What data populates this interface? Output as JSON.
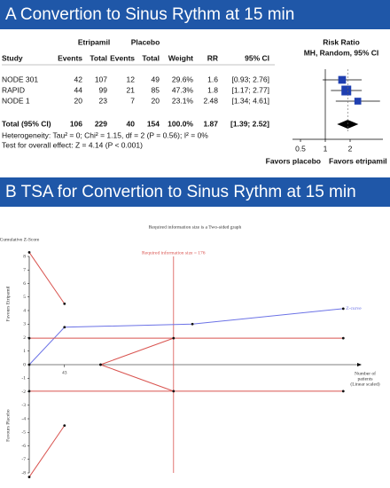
{
  "panel_a": {
    "title": "A Convertion to Sinus Rythm at 15 min",
    "group_headers": [
      "Etripamil",
      "Placebo"
    ],
    "plot_header": [
      "Risk Ratio",
      "MH, Random, 95% CI"
    ],
    "columns": [
      "Study",
      "Events",
      "Total",
      "Events",
      "Total",
      "Weight",
      "RR",
      "95% CI"
    ],
    "rows": [
      {
        "study": "NODE 301",
        "e1": 42,
        "t1": 107,
        "e2": 12,
        "t2": 49,
        "weight": {
          "value": 29.6,
          "label": "29.6%"
        },
        "rr": 1.6,
        "ci": {
          "lower": 0.93,
          "upper": 2.76,
          "label": "[0.93; 2.76]"
        }
      },
      {
        "study": "RAPID",
        "e1": 44,
        "t1": 99,
        "e2": 21,
        "t2": 85,
        "weight": {
          "value": 47.3,
          "label": "47.3%"
        },
        "rr": 1.8,
        "ci": {
          "lower": 1.17,
          "upper": 2.77,
          "label": "[1.17; 2.77]"
        }
      },
      {
        "study": "NODE 1",
        "e1": 20,
        "t1": 23,
        "e2": 7,
        "t2": 20,
        "weight": {
          "value": 23.1,
          "label": "23.1%"
        },
        "rr": 2.48,
        "ci": {
          "lower": 1.34,
          "upper": 4.61,
          "label": "[1.34; 4.61]"
        }
      }
    ],
    "total": {
      "study": "Total (95% CI)",
      "e1": 106,
      "t1": 229,
      "e2": 40,
      "t2": 154,
      "weight": {
        "value": 100.0,
        "label": "100.0%"
      },
      "rr": 1.87,
      "ci": {
        "lower": 1.39,
        "upper": 2.52,
        "label": "[1.39; 2.52]"
      }
    },
    "heterogeneity": "Heterogeneity: Tau² = 0; Chi² = 1.15, df = 2 (P = 0.56); I² = 0%",
    "overall_effect": "Test for overall effect: Z = 4.14 (P < 0.001)",
    "log_scale": true,
    "xlim": [
      0.4,
      5
    ],
    "xticks": [
      0.5,
      1,
      2
    ],
    "favors_left": "Favors placebo",
    "favors_right": "Favors etripamil"
  },
  "panel_b": {
    "title": "B TSA for Convertion to Sinus Rythm at 15 min",
    "chart_data": {
      "type": "line",
      "title": "Required information size is a Two-sided graph",
      "y_label": "Cumulative Z-Score",
      "x_label": [
        "Number of",
        "patients",
        "(Linear scaled)"
      ],
      "upper_side_label": "Favours Etripamil",
      "lower_side_label": "Favours Placebo",
      "xlim": [
        0,
        400
      ],
      "ylim": [
        -8,
        8
      ],
      "xticks": [
        43
      ],
      "yticks": [
        -8,
        -7,
        -6,
        -5,
        -4,
        -3,
        -2,
        -1,
        0,
        1,
        2,
        3,
        4,
        5,
        6,
        7,
        8
      ],
      "required_information_size": {
        "value": 176,
        "label": "Required information size = 176"
      },
      "series": [
        {
          "name": "Z-curve",
          "color": "#6b72e6",
          "x": [
            0,
            43,
            199,
            383
          ],
          "values": [
            0,
            2.77,
            3.0,
            4.14
          ]
        },
        {
          "color": "#d9534f",
          "x": [
            0,
            383
          ],
          "values": [
            1.96,
            1.96
          ]
        },
        {
          "color": "#d9534f",
          "x": [
            0,
            383
          ],
          "values": [
            -1.96,
            -1.96
          ]
        },
        {
          "color": "#d9534f",
          "x": [
            0,
            43
          ],
          "values": [
            8.3,
            4.5
          ]
        },
        {
          "color": "#d9534f",
          "x": [
            0,
            43
          ],
          "values": [
            -8.3,
            -4.5
          ]
        },
        {
          "color": "#d9534f",
          "x": [
            87,
            176
          ],
          "values": [
            0,
            1.96
          ]
        },
        {
          "color": "#d9534f",
          "x": [
            87,
            176
          ],
          "values": [
            0,
            -1.96
          ]
        }
      ]
    }
  }
}
